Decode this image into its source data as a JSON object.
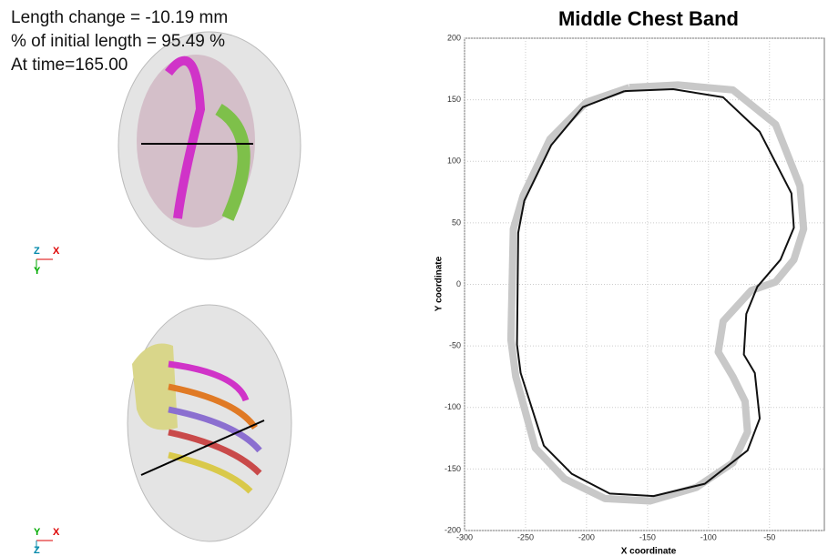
{
  "overlay": {
    "lines": [
      "Length change = -10.19 mm",
      "% of initial length = 95.49 %",
      "At time=165.00"
    ]
  },
  "triads": [
    {
      "z": "Z",
      "x": "X",
      "y": "Y"
    },
    {
      "z": "Z",
      "x": "X",
      "y": "Y"
    }
  ],
  "chart_data": {
    "type": "line",
    "title": "Middle Chest Band",
    "xlabel": "X coordinate",
    "ylabel": "Y coordinate",
    "xlim": [
      -300,
      -5
    ],
    "ylim": [
      -200,
      200
    ],
    "xticks": [
      -300,
      -250,
      -200,
      -150,
      -100,
      -50
    ],
    "yticks": [
      -200,
      -150,
      -100,
      -50,
      0,
      50,
      100,
      150,
      200
    ],
    "grid": true,
    "series": [
      {
        "color": "#c8c8c8",
        "x": [
          -165,
          -125,
          -80,
          -45,
          -25,
          -22,
          -30,
          -45,
          -65,
          -88,
          -92,
          -80,
          -70,
          -68,
          -80,
          -110,
          -148,
          -185,
          -218,
          -242,
          -258,
          -262,
          -260,
          -252,
          -230,
          -200,
          -165
        ],
        "values": [
          160,
          162,
          158,
          130,
          80,
          45,
          20,
          2,
          -5,
          -30,
          -55,
          -75,
          -95,
          -120,
          -145,
          -165,
          -176,
          -174,
          -158,
          -133,
          -75,
          -45,
          45,
          72,
          118,
          148,
          160
        ]
      },
      {
        "color": "#111111",
        "x": [
          -169,
          -129,
          -88,
          -58,
          -32,
          -30,
          -41,
          -60,
          -69,
          -71,
          -62,
          -58,
          -68,
          -103,
          -145,
          -181,
          -212,
          -235,
          -254,
          -257,
          -256,
          -251,
          -229,
          -203,
          -169
        ],
        "values": [
          157,
          158.6,
          152,
          124,
          74,
          46,
          20,
          -2,
          -24,
          -57,
          -72,
          -109,
          -135,
          -162,
          -172,
          -170,
          -154,
          -131,
          -72,
          -49,
          42,
          68,
          113,
          144,
          157
        ]
      }
    ]
  }
}
